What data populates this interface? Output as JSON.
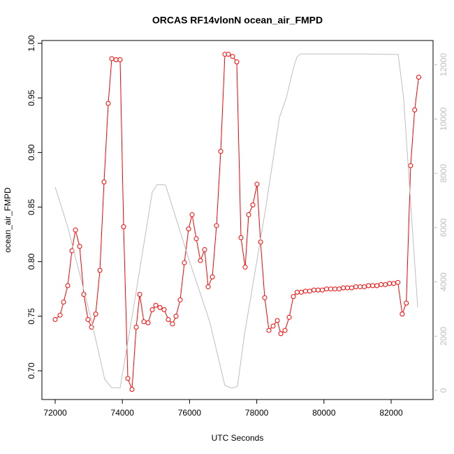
{
  "chart_data": {
    "type": "line",
    "title": "ORCAS RF14vlonN ocean_air_FMPD",
    "xlabel": "UTC Seconds",
    "ylabel": "ocean_air_FMPD",
    "xlim": [
      71605,
      83247
    ],
    "xticks": [
      72000,
      74000,
      76000,
      78000,
      80000,
      82000
    ],
    "ylim": [
      0.6737,
      1.0026
    ],
    "yticks": [
      {
        "value": 0.7,
        "label": "0.70"
      },
      0.75,
      {
        "value": 0.8,
        "label": "0.80"
      },
      0.85,
      {
        "value": 0.9,
        "label": "0.90"
      },
      0.95,
      {
        "value": 1.0,
        "label": "1.00"
      }
    ],
    "y2lim": [
      -335,
      12895
    ],
    "y2ticks": [
      0,
      2000,
      4000,
      6000,
      8000,
      10000,
      12000
    ],
    "series": [
      {
        "color": "#ff0000",
        "markers": true,
        "x": [
          72000,
          72146,
          72250,
          72374,
          72499,
          72603,
          72728,
          72852,
          72977,
          73081,
          73206,
          73331,
          73455,
          73580,
          73684,
          73809,
          73933,
          74037,
          74162,
          74287,
          74412,
          74516,
          74640,
          74765,
          74890,
          74994,
          75119,
          75243,
          75368,
          75493,
          75597,
          75721,
          75846,
          75971,
          76075,
          76200,
          76324,
          76449,
          76553,
          76678,
          76802,
          76927,
          77052,
          77156,
          77281,
          77405,
          77530,
          77655,
          77759,
          77884,
          78008,
          78113,
          78237,
          78362,
          78486,
          78611,
          78715,
          78840,
          78965,
          79090,
          79200,
          79325,
          79450,
          79575,
          79700,
          79825,
          79950,
          80075,
          80200,
          80325,
          80450,
          80575,
          80700,
          80825,
          80950,
          81075,
          81200,
          81325,
          81450,
          81575,
          81700,
          81825,
          81950,
          82075,
          82200,
          82330,
          82450,
          82580,
          82700,
          82820
        ],
        "values": [
          0.747,
          0.751,
          0.763,
          0.778,
          0.81,
          0.829,
          0.814,
          0.77,
          0.747,
          0.74,
          0.752,
          0.792,
          0.873,
          0.945,
          0.986,
          0.985,
          0.985,
          0.832,
          0.693,
          0.683,
          0.74,
          0.77,
          0.745,
          0.744,
          0.756,
          0.76,
          0.758,
          0.756,
          0.747,
          0.743,
          0.75,
          0.765,
          0.799,
          0.83,
          0.843,
          0.821,
          0.801,
          0.811,
          0.777,
          0.786,
          0.833,
          0.901,
          0.99,
          0.99,
          0.988,
          0.983,
          0.822,
          0.795,
          0.843,
          0.852,
          0.871,
          0.818,
          0.767,
          0.737,
          0.741,
          0.746,
          0.734,
          0.737,
          0.749,
          0.768,
          0.772,
          0.772,
          0.773,
          0.773,
          0.774,
          0.774,
          0.774,
          0.775,
          0.775,
          0.775,
          0.775,
          0.776,
          0.776,
          0.776,
          0.777,
          0.777,
          0.777,
          0.778,
          0.778,
          0.778,
          0.779,
          0.779,
          0.78,
          0.78,
          0.781,
          0.752,
          0.762,
          0.888,
          0.939,
          0.969
        ]
      },
      {
        "color": "#bebebe",
        "axis": "y2",
        "markers": false,
        "x": [
          72000,
          72146,
          72374,
          73060,
          73475,
          73680,
          73933,
          74300,
          74890,
          75035,
          75285,
          75450,
          75970,
          76595,
          77052,
          77260,
          77425,
          77630,
          78260,
          78675,
          78880,
          79090,
          79194,
          79300,
          81170,
          82210,
          82370,
          82790
        ],
        "values": [
          7490,
          6925,
          6020,
          2680,
          410,
          100,
          100,
          2800,
          7310,
          7590,
          7570,
          6925,
          4865,
          2550,
          180,
          80,
          150,
          2030,
          6670,
          10060,
          10785,
          11870,
          12280,
          12400,
          12400,
          12380,
          10785,
          3060
        ]
      }
    ]
  }
}
